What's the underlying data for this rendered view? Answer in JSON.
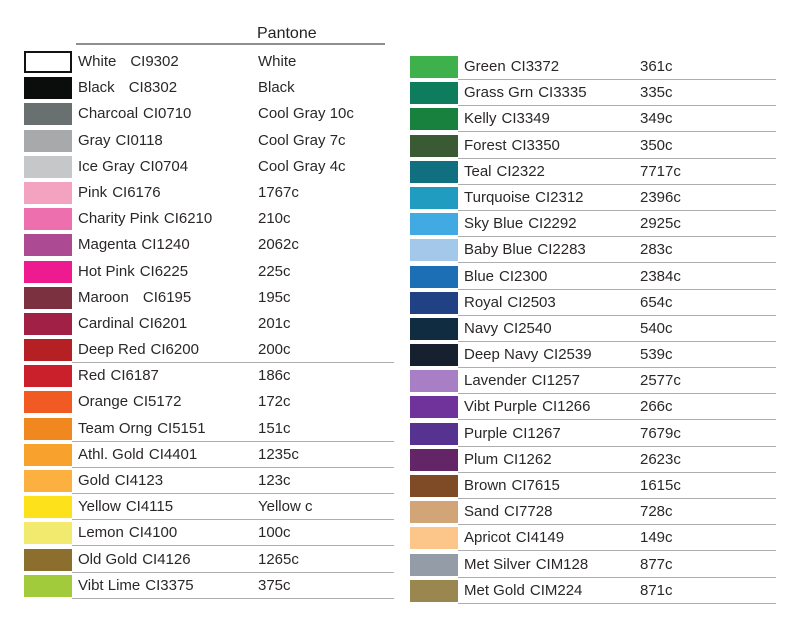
{
  "chart_data": {
    "type": "table",
    "title": "Pantone",
    "columns": [
      "swatch_color",
      "color_name",
      "ci_code",
      "pantone_code"
    ],
    "left_rows": [
      {
        "name": "White",
        "code": "CI9302",
        "pantone": "White",
        "swatch": "#ffffff",
        "swatch_border": true,
        "wide_gap": true,
        "underline": false
      },
      {
        "name": "Black",
        "code": "CI8302",
        "pantone": "Black",
        "swatch": "#0b0c0c",
        "swatch_border": false,
        "wide_gap": true,
        "underline": false
      },
      {
        "name": "Charcoal",
        "code": "CI0710",
        "pantone": "Cool Gray 10c",
        "swatch": "#687170",
        "swatch_border": false,
        "wide_gap": false,
        "underline": false
      },
      {
        "name": "Gray",
        "code": "CI0118",
        "pantone": "Cool Gray 7c",
        "swatch": "#a7a9ab",
        "swatch_border": false,
        "wide_gap": false,
        "underline": false
      },
      {
        "name": "Ice Gray",
        "code": "CI0704",
        "pantone": "Cool Gray 4c",
        "swatch": "#c5c7c9",
        "swatch_border": false,
        "wide_gap": false,
        "underline": false
      },
      {
        "name": "Pink",
        "code": "CI6176",
        "pantone": "1767c",
        "swatch": "#f3a3c0",
        "swatch_border": false,
        "wide_gap": false,
        "underline": false
      },
      {
        "name": "Charity Pink",
        "code": "CI6210",
        "pantone": "210c",
        "swatch": "#ee6fae",
        "swatch_border": false,
        "wide_gap": false,
        "underline": false
      },
      {
        "name": "Magenta",
        "code": "CI1240",
        "pantone": "2062c",
        "swatch": "#ad4a94",
        "swatch_border": false,
        "wide_gap": false,
        "underline": false
      },
      {
        "name": "Hot Pink",
        "code": "CI6225",
        "pantone": "225c",
        "swatch": "#ee1a90",
        "swatch_border": false,
        "wide_gap": false,
        "underline": false
      },
      {
        "name": "Maroon",
        "code": "CI6195",
        "pantone": "195c",
        "swatch": "#7c3140",
        "swatch_border": false,
        "wide_gap": true,
        "underline": false
      },
      {
        "name": "Cardinal",
        "code": "CI6201",
        "pantone": "201c",
        "swatch": "#a02145",
        "swatch_border": false,
        "wide_gap": false,
        "underline": false
      },
      {
        "name": "Deep Red",
        "code": "CI6200",
        "pantone": "200c",
        "swatch": "#b52025",
        "swatch_border": false,
        "wide_gap": false,
        "underline": true
      },
      {
        "name": "Red",
        "code": "CI6187",
        "pantone": "186c",
        "swatch": "#c9202b",
        "swatch_border": false,
        "wide_gap": false,
        "underline": false
      },
      {
        "name": "Orange",
        "code": "CI5172",
        "pantone": "172c",
        "swatch": "#f15a22",
        "swatch_border": false,
        "wide_gap": false,
        "underline": false
      },
      {
        "name": "Team Orng",
        "code": "CI5151",
        "pantone": "151c",
        "swatch": "#f0871f",
        "swatch_border": false,
        "wide_gap": false,
        "underline": true
      },
      {
        "name": "Athl. Gold",
        "code": "CI4401",
        "pantone": "1235c",
        "swatch": "#f8a12c",
        "swatch_border": false,
        "wide_gap": false,
        "underline": true
      },
      {
        "name": "Gold",
        "code": "CI4123",
        "pantone": "123c",
        "swatch": "#fbb040",
        "swatch_border": false,
        "wide_gap": false,
        "underline": true
      },
      {
        "name": "Yellow",
        "code": "CI4115",
        "pantone": "Yellow c",
        "swatch": "#fde21b",
        "swatch_border": false,
        "wide_gap": false,
        "underline": true
      },
      {
        "name": "Lemon",
        "code": "CI4100",
        "pantone": "100c",
        "swatch": "#f2ea6e",
        "swatch_border": false,
        "wide_gap": false,
        "underline": true
      },
      {
        "name": "Old Gold",
        "code": "CI4126",
        "pantone": "1265c",
        "swatch": "#8c6e2e",
        "swatch_border": false,
        "wide_gap": false,
        "underline": true
      },
      {
        "name": "Vibt Lime",
        "code": "CI3375",
        "pantone": "375c",
        "swatch": "#a1cb3a",
        "swatch_border": false,
        "wide_gap": false,
        "underline": true
      }
    ],
    "right_rows": [
      {
        "name": "Green",
        "code": "CI3372",
        "pantone": "361c",
        "swatch": "#3eb14d",
        "swatch_border": false,
        "wide_gap": false,
        "underline": true
      },
      {
        "name": "Grass Grn",
        "code": "CI3335",
        "pantone": "335c",
        "swatch": "#0e7d5e",
        "swatch_border": false,
        "wide_gap": false,
        "underline": true
      },
      {
        "name": "Kelly",
        "code": "CI3349",
        "pantone": "349c",
        "swatch": "#17813d",
        "swatch_border": false,
        "wide_gap": false,
        "underline": true
      },
      {
        "name": "Forest",
        "code": "CI3350",
        "pantone": "350c",
        "swatch": "#3a5a33",
        "swatch_border": false,
        "wide_gap": false,
        "underline": true
      },
      {
        "name": "Teal",
        "code": "CI2322",
        "pantone": "7717c",
        "swatch": "#107080",
        "swatch_border": false,
        "wide_gap": false,
        "underline": true
      },
      {
        "name": "Turquoise",
        "code": "CI2312",
        "pantone": "2396c",
        "swatch": "#1f9cc0",
        "swatch_border": false,
        "wide_gap": false,
        "underline": true
      },
      {
        "name": "Sky Blue",
        "code": "CI2292",
        "pantone": "2925c",
        "swatch": "#41aae2",
        "swatch_border": false,
        "wide_gap": false,
        "underline": true
      },
      {
        "name": "Baby Blue",
        "code": "CI2283",
        "pantone": "283c",
        "swatch": "#a4c8ea",
        "swatch_border": false,
        "wide_gap": false,
        "underline": true
      },
      {
        "name": "Blue",
        "code": "CI2300",
        "pantone": "2384c",
        "swatch": "#1d6fb5",
        "swatch_border": false,
        "wide_gap": false,
        "underline": true
      },
      {
        "name": "Royal",
        "code": "CI2503",
        "pantone": "654c",
        "swatch": "#204183",
        "swatch_border": false,
        "wide_gap": false,
        "underline": true
      },
      {
        "name": "Navy",
        "code": "CI2540",
        "pantone": "540c",
        "swatch": "#102c40",
        "swatch_border": false,
        "wide_gap": false,
        "underline": true
      },
      {
        "name": "Deep Navy",
        "code": "CI2539",
        "pantone": "539c",
        "swatch": "#16202f",
        "swatch_border": false,
        "wide_gap": false,
        "underline": true
      },
      {
        "name": "Lavender",
        "code": "CI1257",
        "pantone": "2577c",
        "swatch": "#a87fc5",
        "swatch_border": false,
        "wide_gap": false,
        "underline": true
      },
      {
        "name": "Vibt Purple",
        "code": "CI1266",
        "pantone": "266c",
        "swatch": "#6f339b",
        "swatch_border": false,
        "wide_gap": false,
        "underline": true
      },
      {
        "name": "Purple",
        "code": "CI1267",
        "pantone": "7679c",
        "swatch": "#563291",
        "swatch_border": false,
        "wide_gap": false,
        "underline": true
      },
      {
        "name": "Plum",
        "code": "CI1262",
        "pantone": "2623c",
        "swatch": "#632566",
        "swatch_border": false,
        "wide_gap": false,
        "underline": true
      },
      {
        "name": "Brown",
        "code": "CI7615",
        "pantone": "1615c",
        "swatch": "#7f4b27",
        "swatch_border": false,
        "wide_gap": false,
        "underline": true
      },
      {
        "name": "Sand",
        "code": "CI7728",
        "pantone": "728c",
        "swatch": "#d1a578",
        "swatch_border": false,
        "wide_gap": false,
        "underline": true
      },
      {
        "name": "Apricot",
        "code": "CI4149",
        "pantone": "149c",
        "swatch": "#fcc589",
        "swatch_border": false,
        "wide_gap": false,
        "underline": true
      },
      {
        "name": "Met Silver",
        "code": "CIM128",
        "pantone": "877c",
        "swatch": "#949da7",
        "swatch_border": false,
        "wide_gap": false,
        "underline": true
      },
      {
        "name": "Met Gold",
        "code": "CIM224",
        "pantone": "871c",
        "swatch": "#9a864f",
        "swatch_border": false,
        "wide_gap": false,
        "underline": true
      }
    ]
  },
  "colors": {
    "text": "#2b2728",
    "header_rule": "#8f8f8f",
    "row_rule": "#aeaeae",
    "background": "#ffffff"
  }
}
